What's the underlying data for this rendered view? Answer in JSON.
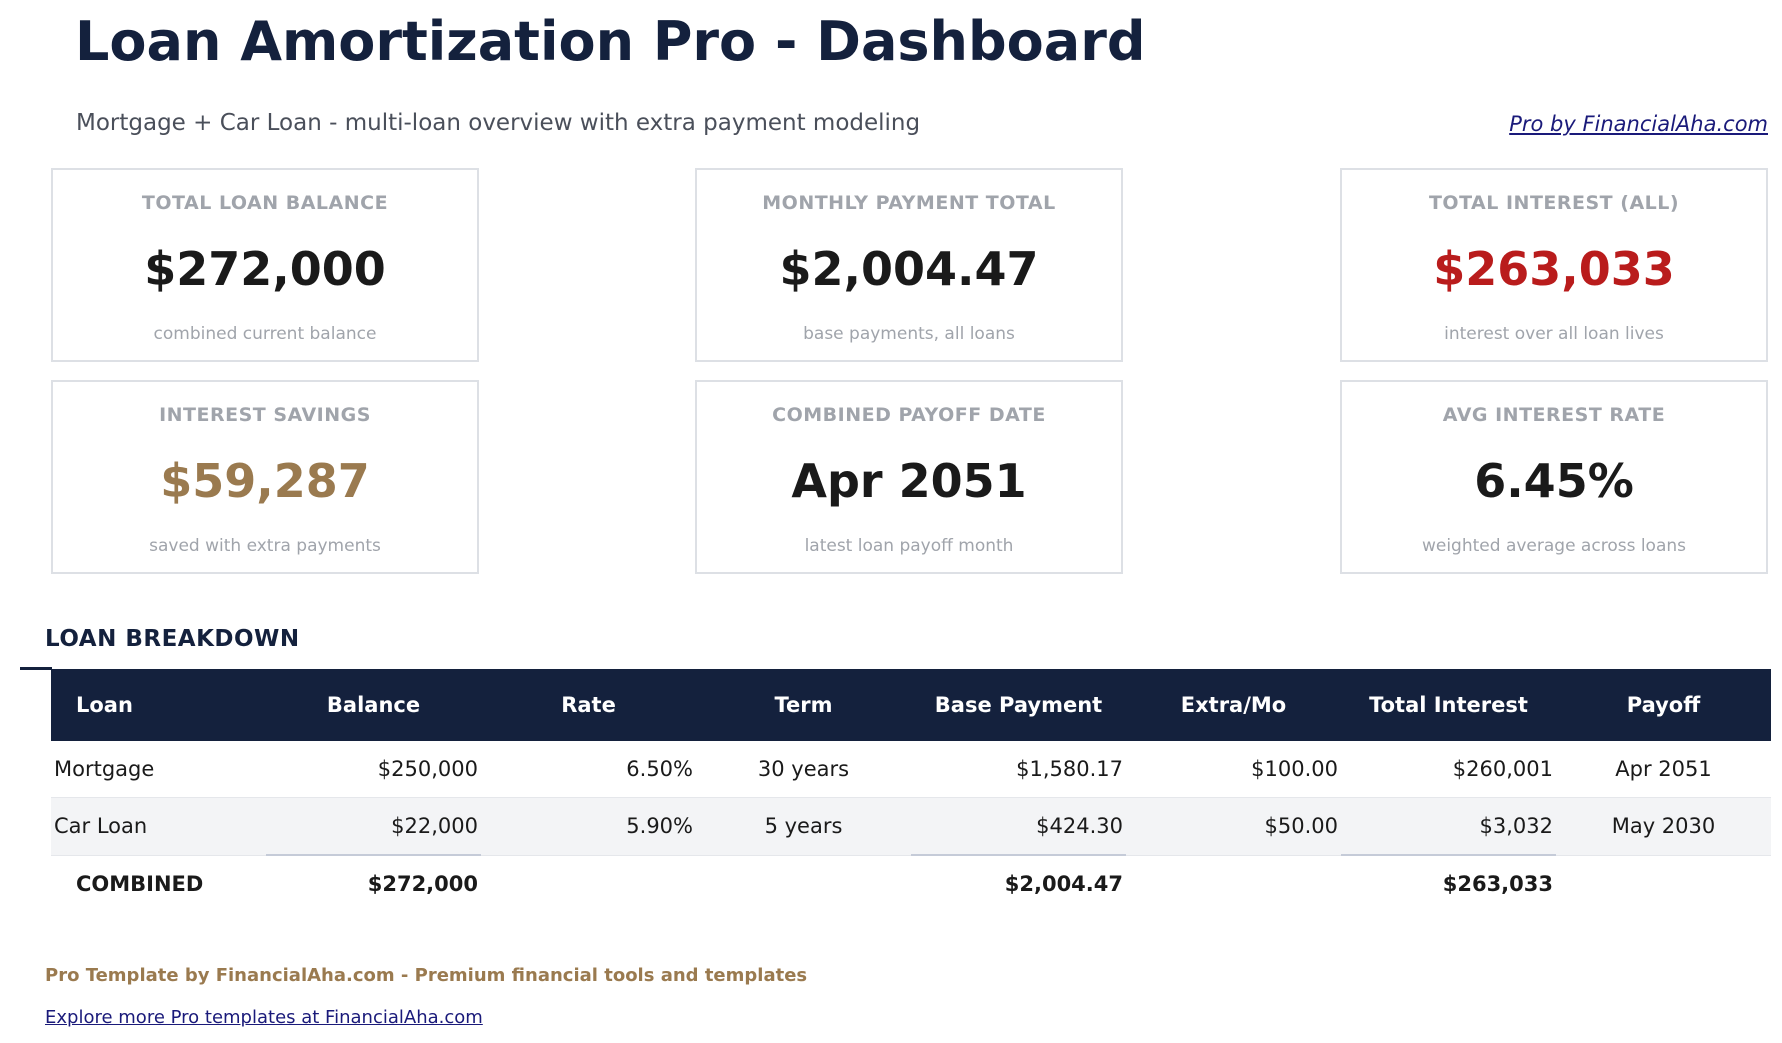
{
  "header": {
    "title": "Loan Amortization Pro - Dashboard",
    "subtitle": "Mortgage + Car Loan - multi-loan overview with extra payment modeling",
    "link": "Pro by FinancialAha.com"
  },
  "cards": [
    {
      "label": "TOTAL LOAN BALANCE",
      "value": "$272,000",
      "note": "combined current balance"
    },
    {
      "label": "MONTHLY PAYMENT TOTAL",
      "value": "$2,004.47",
      "note": "base payments, all loans"
    },
    {
      "label": "TOTAL INTEREST (ALL)",
      "value": "$263,033",
      "note": "interest over all loan lives"
    },
    {
      "label": "INTEREST SAVINGS",
      "value": "$59,287",
      "note": "saved with extra payments"
    },
    {
      "label": "COMBINED PAYOFF DATE",
      "value": "Apr 2051",
      "note": "latest loan payoff month"
    },
    {
      "label": "AVG INTEREST RATE",
      "value": "6.45%",
      "note": "weighted average across loans"
    }
  ],
  "table": {
    "title": "LOAN BREAKDOWN",
    "columns": [
      "Loan",
      "Balance",
      "Rate",
      "Term",
      "Base Payment",
      "Extra/Mo",
      "Total Interest",
      "Payoff"
    ],
    "rows": [
      [
        "Mortgage",
        "$250,000",
        "6.50%",
        "30 years",
        "$1,580.17",
        "$100.00",
        "$260,001",
        "Apr 2051"
      ],
      [
        "Car Loan",
        "$22,000",
        "5.90%",
        "5 years",
        "$424.30",
        "$50.00",
        "$3,032",
        "May 2030"
      ]
    ],
    "totals": {
      "label": "COMBINED",
      "balance": "$272,000",
      "base_payment": "$2,004.47",
      "total_interest": "$263,033"
    }
  },
  "footer": {
    "text": "Pro Template by FinancialAha.com - Premium financial tools and templates",
    "link": "Explore more Pro templates at FinancialAha.com"
  }
}
